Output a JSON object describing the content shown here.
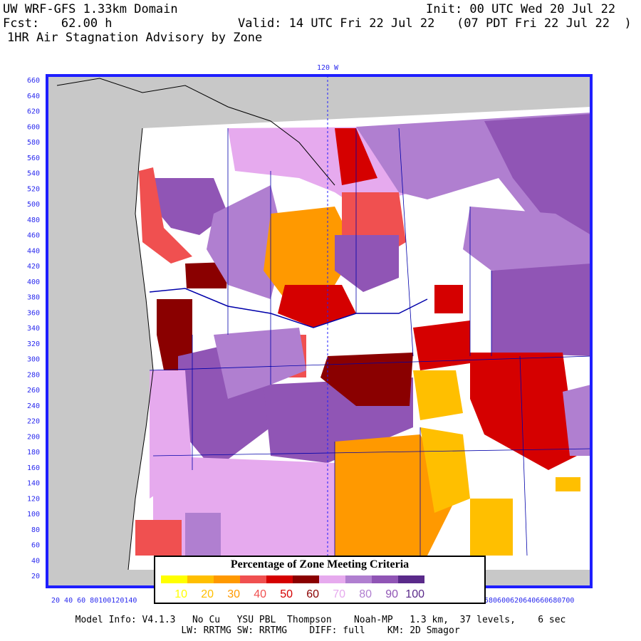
{
  "header": {
    "domain_title": "UW WRF-GFS 1.33km Domain",
    "init": "Init: 00 UTC Wed 20 Jul 22",
    "fcst": "Fcst:   62.00 h",
    "valid": "Valid: 14 UTC Fri 22 Jul 22   (07 PDT Fri 22 Jul 22  )",
    "product": "1HR Air Stagnation Advisory by Zone"
  },
  "map": {
    "meridian_label": "120 W",
    "y_ticks": [
      "660",
      "640",
      "620",
      "600",
      "580",
      "560",
      "540",
      "520",
      "500",
      "480",
      "460",
      "440",
      "420",
      "400",
      "380",
      "360",
      "340",
      "320",
      "300",
      "280",
      "260",
      "240",
      "220",
      "200",
      "180",
      "160",
      "140",
      "120",
      "100",
      "80",
      "60",
      "40",
      "20"
    ],
    "x_ticks_left": "20 40 60 80100120140",
    "x_ticks_right": "580600620640660680700",
    "colors": {
      "ocean": "#c8c8c8",
      "frame": "#1e1eff",
      "zone_border": "#0000aa"
    }
  },
  "legend": {
    "title": "Percentage of Zone Meeting Criteria",
    "entries": [
      {
        "label": "10",
        "color": "#ffff00"
      },
      {
        "label": "20",
        "color": "#ffbf00"
      },
      {
        "label": "30",
        "color": "#ff9900"
      },
      {
        "label": "40",
        "color": "#f05050"
      },
      {
        "label": "50",
        "color": "#d50000"
      },
      {
        "label": "60",
        "color": "#8a0000"
      },
      {
        "label": "70",
        "color": "#e6aaee"
      },
      {
        "label": "80",
        "color": "#b07fd0"
      },
      {
        "label": "90",
        "color": "#9055b5"
      },
      {
        "label": "100",
        "color": "#5a2a8a"
      }
    ]
  },
  "footer": {
    "line1": "Model Info: V4.1.3   No Cu   YSU PBL  Thompson    Noah-MP   1.3 km,  37 levels,    6 sec",
    "line2": "LW: RRTMG SW: RRTMG    DIFF: full    KM: 2D Smagor"
  }
}
